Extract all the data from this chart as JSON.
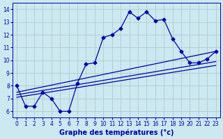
{
  "background_color": "#cce8f0",
  "grid_color": "#b0cccc",
  "line_color": "#0000aa",
  "marker": "D",
  "markersize": 2.5,
  "linewidth": 0.9,
  "xlabel": "Graphe des températures (°c)",
  "xlabel_fontsize": 7,
  "xlim": [
    -0.5,
    23.5
  ],
  "ylim": [
    5.5,
    14.5
  ],
  "xticks": [
    0,
    1,
    2,
    3,
    4,
    5,
    6,
    7,
    8,
    9,
    10,
    11,
    12,
    13,
    14,
    15,
    16,
    17,
    18,
    19,
    20,
    21,
    22,
    23
  ],
  "yticks": [
    6,
    7,
    8,
    9,
    10,
    11,
    12,
    13,
    14
  ],
  "series": [
    [
      0,
      8.0
    ],
    [
      1,
      6.4
    ],
    [
      2,
      6.4
    ],
    [
      3,
      7.5
    ],
    [
      4,
      7.0
    ],
    [
      5,
      6.0
    ],
    [
      6,
      6.0
    ],
    [
      7,
      8.2
    ],
    [
      8,
      9.7
    ],
    [
      9,
      9.8
    ],
    [
      10,
      11.8
    ],
    [
      11,
      12.0
    ],
    [
      12,
      12.5
    ],
    [
      13,
      13.8
    ],
    [
      14,
      13.3
    ],
    [
      15,
      13.8
    ],
    [
      16,
      13.1
    ],
    [
      17,
      13.2
    ],
    [
      18,
      11.7
    ],
    [
      19,
      10.7
    ],
    [
      20,
      9.8
    ],
    [
      21,
      9.8
    ],
    [
      22,
      10.1
    ],
    [
      23,
      10.7
    ]
  ],
  "line2": [
    [
      0,
      7.5
    ],
    [
      23,
      10.7
    ]
  ],
  "line3": [
    [
      0,
      7.3
    ],
    [
      23,
      9.9
    ]
  ],
  "line4": [
    [
      0,
      7.1
    ],
    [
      23,
      9.6
    ]
  ]
}
